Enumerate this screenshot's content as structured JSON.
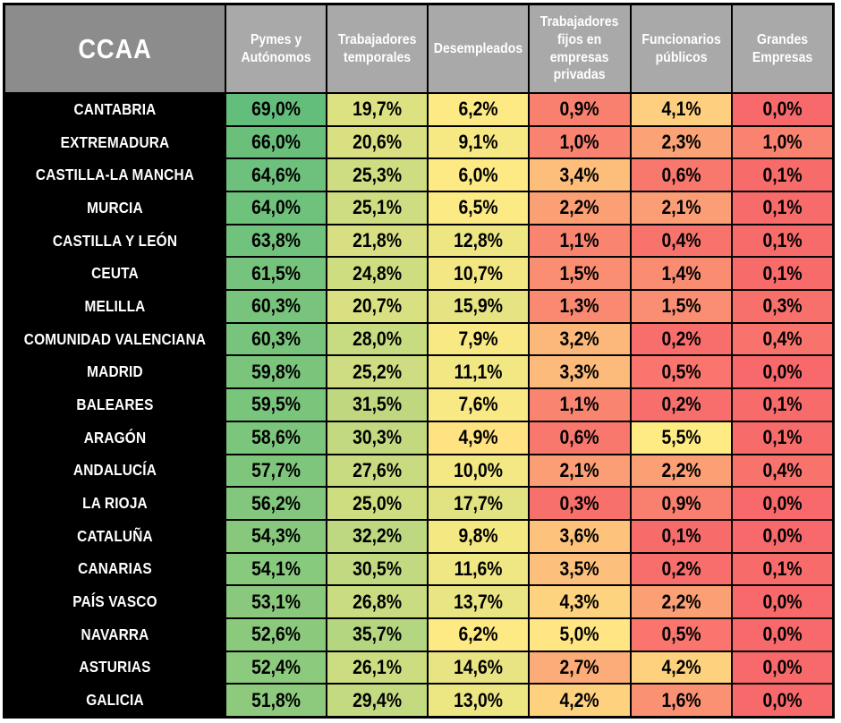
{
  "table": {
    "ccaa_label": "CCAA",
    "columns": [
      "Pymes y Autónomos",
      "Trabajadores temporales",
      "Desempleados",
      "Trabajadores fijos en empresas privadas",
      "Funcionarios públicos",
      "Grandes Empresas"
    ],
    "rows": [
      {
        "name": "CANTABRIA",
        "values": [
          "69,0%",
          "19,7%",
          "6,2%",
          "0,9%",
          "4,1%",
          "0,0%"
        ]
      },
      {
        "name": "EXTREMADURA",
        "values": [
          "66,0%",
          "20,6%",
          "9,1%",
          "1,0%",
          "2,3%",
          "1,0%"
        ]
      },
      {
        "name": "CASTILLA-LA MANCHA",
        "values": [
          "64,6%",
          "25,3%",
          "6,0%",
          "3,4%",
          "0,6%",
          "0,1%"
        ]
      },
      {
        "name": "MURCIA",
        "values": [
          "64,0%",
          "25,1%",
          "6,5%",
          "2,2%",
          "2,1%",
          "0,1%"
        ]
      },
      {
        "name": "CASTILLA Y LEÓN",
        "values": [
          "63,8%",
          "21,8%",
          "12,8%",
          "1,1%",
          "0,4%",
          "0,1%"
        ]
      },
      {
        "name": "CEUTA",
        "values": [
          "61,5%",
          "24,8%",
          "10,7%",
          "1,5%",
          "1,4%",
          "0,1%"
        ]
      },
      {
        "name": "MELILLA",
        "values": [
          "60,3%",
          "20,7%",
          "15,9%",
          "1,3%",
          "1,5%",
          "0,3%"
        ]
      },
      {
        "name": "COMUNIDAD VALENCIANA",
        "values": [
          "60,3%",
          "28,0%",
          "7,9%",
          "3,2%",
          "0,2%",
          "0,4%"
        ]
      },
      {
        "name": "MADRID",
        "values": [
          "59,8%",
          "25,2%",
          "11,1%",
          "3,3%",
          "0,5%",
          "0,0%"
        ]
      },
      {
        "name": "BALEARES",
        "values": [
          "59,5%",
          "31,5%",
          "7,6%",
          "1,1%",
          "0,2%",
          "0,1%"
        ]
      },
      {
        "name": "ARAGÓN",
        "values": [
          "58,6%",
          "30,3%",
          "4,9%",
          "0,6%",
          "5,5%",
          "0,1%"
        ]
      },
      {
        "name": "ANDALUCÍA",
        "values": [
          "57,7%",
          "27,6%",
          "10,0%",
          "2,1%",
          "2,2%",
          "0,4%"
        ]
      },
      {
        "name": "LA RIOJA",
        "values": [
          "56,2%",
          "25,0%",
          "17,7%",
          "0,3%",
          "0,9%",
          "0,0%"
        ]
      },
      {
        "name": "CATALUÑA",
        "values": [
          "54,3%",
          "32,2%",
          "9,8%",
          "3,6%",
          "0,1%",
          "0,0%"
        ]
      },
      {
        "name": "CANARIAS",
        "values": [
          "54,1%",
          "30,5%",
          "11,6%",
          "3,5%",
          "0,2%",
          "0,1%"
        ]
      },
      {
        "name": "PAÍS VASCO",
        "values": [
          "53,1%",
          "26,8%",
          "13,7%",
          "4,3%",
          "2,2%",
          "0,0%"
        ]
      },
      {
        "name": "NAVARRA",
        "values": [
          "52,6%",
          "35,7%",
          "6,2%",
          "5,0%",
          "0,5%",
          "0,0%"
        ]
      },
      {
        "name": "ASTURIAS",
        "values": [
          "52,4%",
          "26,1%",
          "14,6%",
          "2,7%",
          "4,2%",
          "0,0%"
        ]
      },
      {
        "name": "GALICIA",
        "values": [
          "51,8%",
          "29,4%",
          "13,0%",
          "4,2%",
          "1,6%",
          "0,0%"
        ]
      }
    ],
    "colors": {
      "page_bg": "#FFFFFF",
      "grid_line": "#000000",
      "ccaa_header_bg": "#8C8C8C",
      "col_header_bg": "#A9A9A9",
      "header_text": "#FFFFFF",
      "row_label_bg": "#000000",
      "row_label_text": "#FFFFFF",
      "value_text": "#000000",
      "scale": {
        "min_color": "#F8696B",
        "mid_color": "#FFEB84",
        "max_color": "#63BE7B",
        "min_value": 0.0,
        "mid_value": 5.25,
        "max_value": 69.0
      }
    }
  },
  "chart_data": {
    "type": "heatmap",
    "title": "",
    "row_header": "CCAA",
    "columns": [
      "Pymes y Autónomos",
      "Trabajadores temporales",
      "Desempleados",
      "Trabajadores fijos en empresas privadas",
      "Funcionarios públicos",
      "Grandes Empresas"
    ],
    "categories": [
      "CANTABRIA",
      "EXTREMADURA",
      "CASTILLA-LA MANCHA",
      "MURCIA",
      "CASTILLA Y LEÓN",
      "CEUTA",
      "MELILLA",
      "COMUNIDAD VALENCIANA",
      "MADRID",
      "BALEARES",
      "ARAGÓN",
      "ANDALUCÍA",
      "LA RIOJA",
      "CATALUÑA",
      "CANARIAS",
      "PAÍS VASCO",
      "NAVARRA",
      "ASTURIAS",
      "GALICIA"
    ],
    "values_percent": [
      [
        69.0,
        19.7,
        6.2,
        0.9,
        4.1,
        0.0
      ],
      [
        66.0,
        20.6,
        9.1,
        1.0,
        2.3,
        1.0
      ],
      [
        64.6,
        25.3,
        6.0,
        3.4,
        0.6,
        0.1
      ],
      [
        64.0,
        25.1,
        6.5,
        2.2,
        2.1,
        0.1
      ],
      [
        63.8,
        21.8,
        12.8,
        1.1,
        0.4,
        0.1
      ],
      [
        61.5,
        24.8,
        10.7,
        1.5,
        1.4,
        0.1
      ],
      [
        60.3,
        20.7,
        15.9,
        1.3,
        1.5,
        0.3
      ],
      [
        60.3,
        28.0,
        7.9,
        3.2,
        0.2,
        0.4
      ],
      [
        59.8,
        25.2,
        11.1,
        3.3,
        0.5,
        0.0
      ],
      [
        59.5,
        31.5,
        7.6,
        1.1,
        0.2,
        0.1
      ],
      [
        58.6,
        30.3,
        4.9,
        0.6,
        5.5,
        0.1
      ],
      [
        57.7,
        27.6,
        10.0,
        2.1,
        2.2,
        0.4
      ],
      [
        56.2,
        25.0,
        17.7,
        0.3,
        0.9,
        0.0
      ],
      [
        54.3,
        32.2,
        9.8,
        3.6,
        0.1,
        0.0
      ],
      [
        54.1,
        30.5,
        11.6,
        3.5,
        0.2,
        0.1
      ],
      [
        53.1,
        26.8,
        13.7,
        4.3,
        2.2,
        0.0
      ],
      [
        52.6,
        35.7,
        6.2,
        5.0,
        0.5,
        0.0
      ],
      [
        52.4,
        26.1,
        14.6,
        2.7,
        4.2,
        0.0
      ],
      [
        51.8,
        29.4,
        13.0,
        4.2,
        1.6,
        0.0
      ]
    ],
    "color_scale": {
      "low": "#F8696B",
      "mid": "#FFEB84",
      "high": "#63BE7B",
      "low_at": 0.0,
      "mid_at": 5.25,
      "high_at": 69.0
    },
    "legend_position": "none",
    "grid": true
  }
}
